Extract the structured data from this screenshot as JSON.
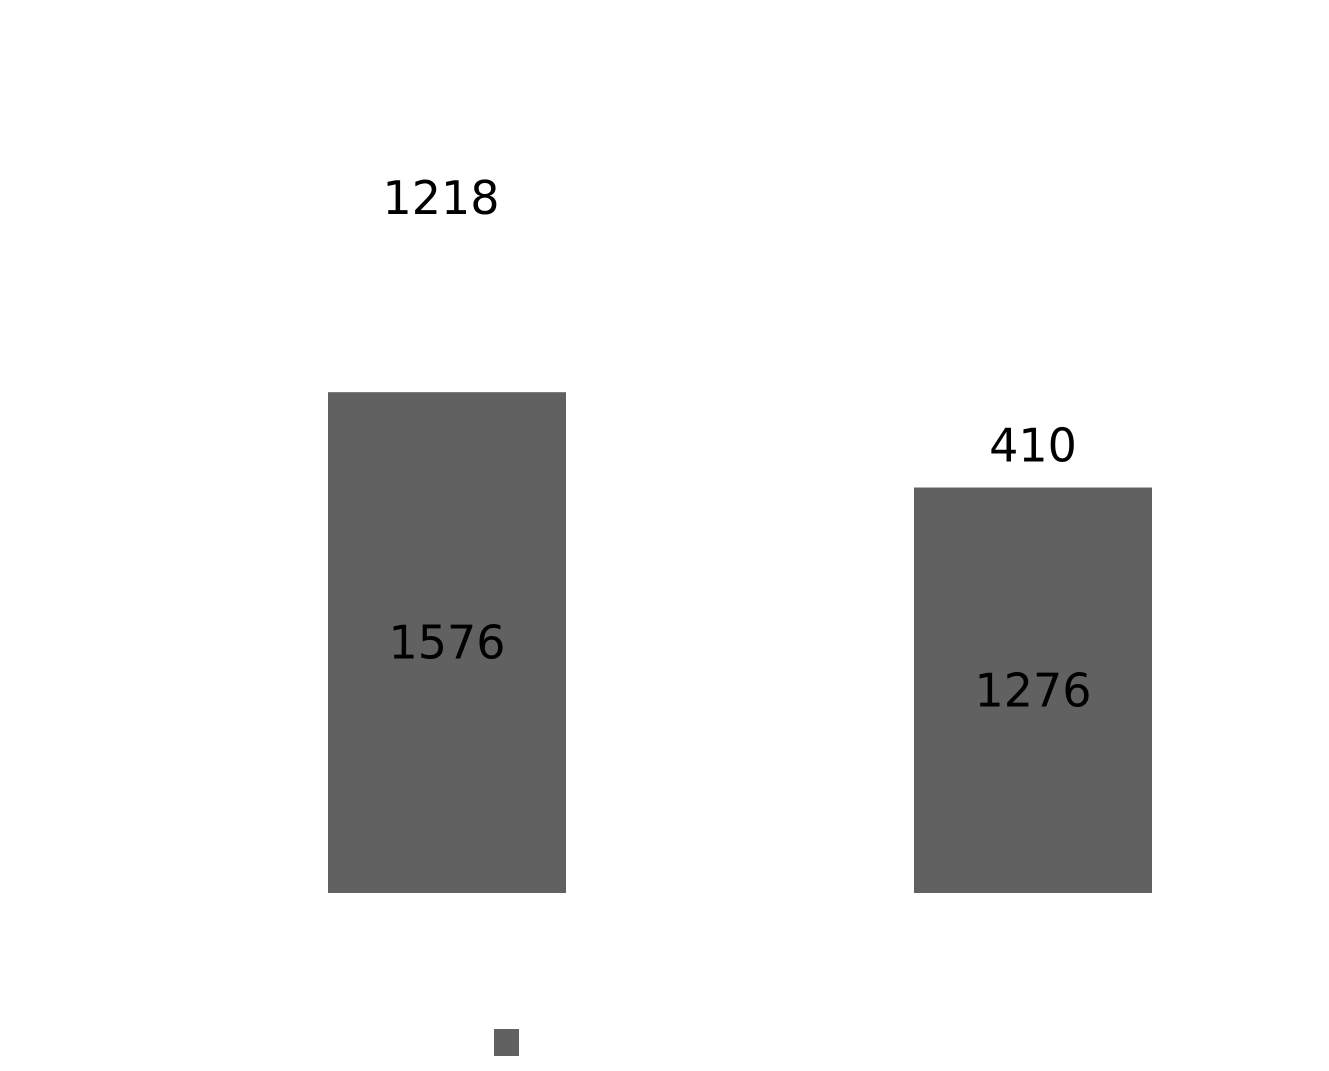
{
  "chart_data": {
    "type": "bar",
    "categories": [
      "",
      ""
    ],
    "values": [
      1576,
      1276
    ],
    "inner_labels": [
      "1576",
      "1276"
    ],
    "outer_labels": [
      "1218",
      "410"
    ],
    "ylim": [
      0,
      2250
    ],
    "grid": false,
    "legend_placement": "bottom",
    "colors": {
      "bar": "#616161",
      "text": "#000000",
      "background": "#ffffff"
    }
  }
}
